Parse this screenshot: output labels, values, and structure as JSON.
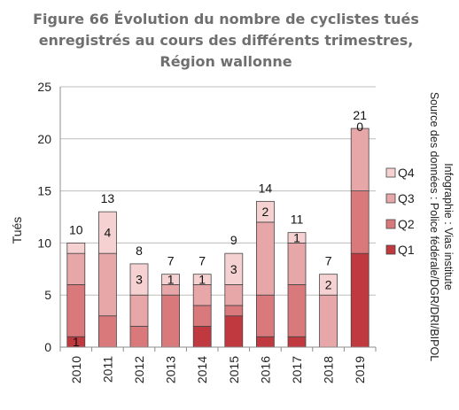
{
  "chart_data": {
    "type": "bar",
    "stacked": true,
    "title_lines": [
      "Figure 66 Évolution du nombre de cyclistes tués",
      "enregistrés au cours des différents trimestres,",
      "Région wallonne"
    ],
    "ylabel": "Tués",
    "xlabel": "",
    "ylim": [
      0,
      25
    ],
    "yticks": [
      0,
      5,
      10,
      15,
      20,
      25
    ],
    "grid": true,
    "legend_position": "right",
    "categories": [
      "2010",
      "2011",
      "2012",
      "2013",
      "2014",
      "2015",
      "2016",
      "2017",
      "2018",
      "2019"
    ],
    "series": [
      {
        "name": "Q1",
        "color": "#c0393f",
        "values": [
          1,
          0,
          0,
          0,
          2,
          3,
          1,
          1,
          0,
          9
        ]
      },
      {
        "name": "Q2",
        "color": "#d9797c",
        "values": [
          5,
          3,
          2,
          5,
          2,
          1,
          4,
          5,
          0,
          6
        ]
      },
      {
        "name": "Q3",
        "color": "#e7a6a7",
        "values": [
          3,
          6,
          3,
          1,
          2,
          2,
          7,
          4,
          5,
          6
        ]
      },
      {
        "name": "Q4",
        "color": "#f5d2d1",
        "values": [
          1,
          4,
          3,
          1,
          1,
          3,
          2,
          1,
          2,
          0
        ]
      }
    ],
    "totals": [
      10,
      13,
      8,
      7,
      7,
      9,
      14,
      11,
      7,
      21
    ],
    "segment_labels": [
      {
        "bar": "2010",
        "series": "Q1",
        "text": "1"
      },
      {
        "bar": "2011",
        "series": "Q4",
        "text": "4"
      },
      {
        "bar": "2012",
        "series": "Q4",
        "text": "3"
      },
      {
        "bar": "2013",
        "series": "Q4",
        "text": "1"
      },
      {
        "bar": "2014",
        "series": "Q4",
        "text": "1"
      },
      {
        "bar": "2015",
        "series": "Q4",
        "text": "3"
      },
      {
        "bar": "2016",
        "series": "Q4",
        "text": "2"
      },
      {
        "bar": "2017",
        "series": "Q4",
        "text": "1"
      },
      {
        "bar": "2018",
        "series": "Q4",
        "text": "2"
      },
      {
        "bar": "2019",
        "series": "Q4",
        "text": "0"
      }
    ],
    "source_lines": [
      "Source des données : Police fédérale/DGR/DRI/BIPOL",
      "Infographie : Vias institute"
    ]
  }
}
